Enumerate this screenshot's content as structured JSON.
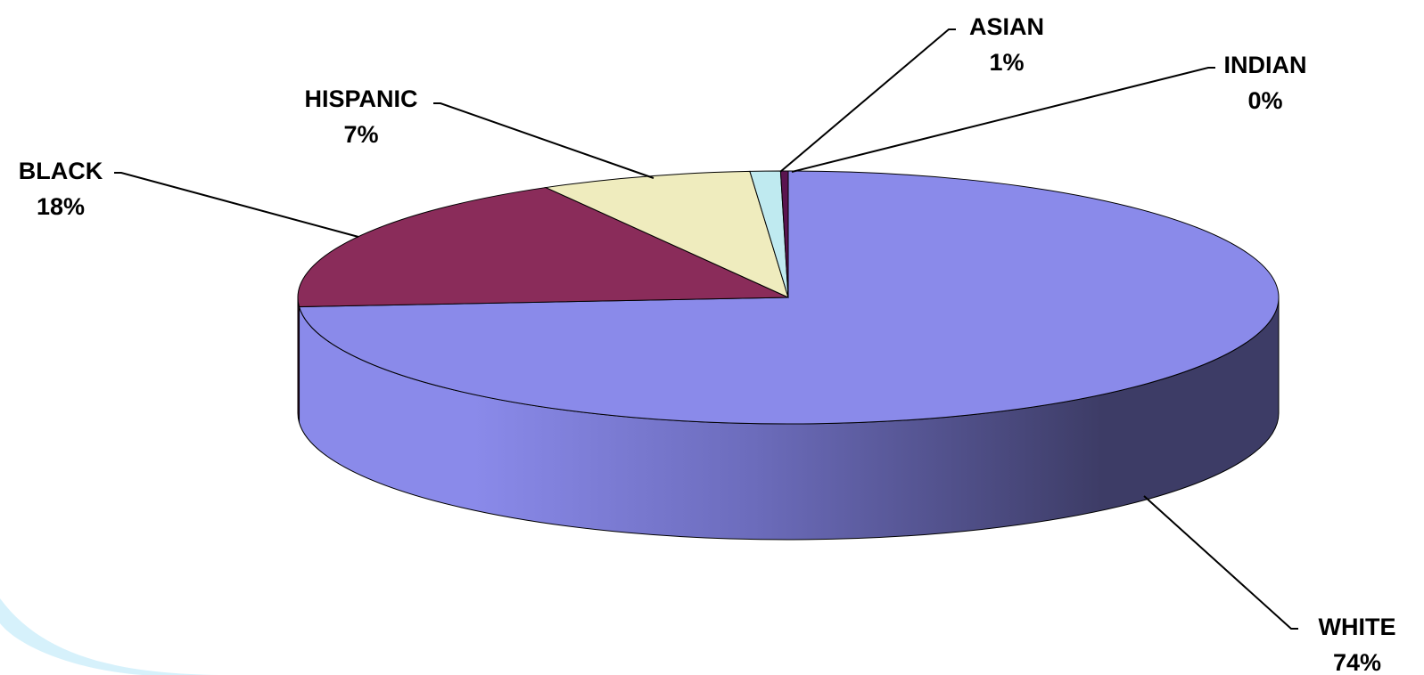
{
  "chart_data": {
    "type": "pie",
    "style": "3d",
    "title": "",
    "slices": [
      {
        "label": "WHITE",
        "value": 74,
        "value_label": "74%",
        "color": "#8a8aea",
        "side_dark": "#3d3c66"
      },
      {
        "label": "BLACK",
        "value": 18,
        "value_label": "18%",
        "color": "#8a2c5a",
        "side_dark": "#451530"
      },
      {
        "label": "HISPANIC",
        "value": 7,
        "value_label": "7%",
        "color": "#efecbe",
        "side_dark": "#8a8866"
      },
      {
        "label": "ASIAN",
        "value": 1,
        "value_label": "1%",
        "color": "#bfeaf0",
        "side_dark": "#5f8a90"
      },
      {
        "label": "INDIAN",
        "value": 0,
        "value_label": "0%",
        "color": "#5a1450",
        "side_dark": "#2a0a25"
      }
    ],
    "legend": "none",
    "data_labels": "outside-with-leaders"
  },
  "theme": {
    "background": "#ffffff",
    "decoration_color": "#d6f1fb"
  }
}
